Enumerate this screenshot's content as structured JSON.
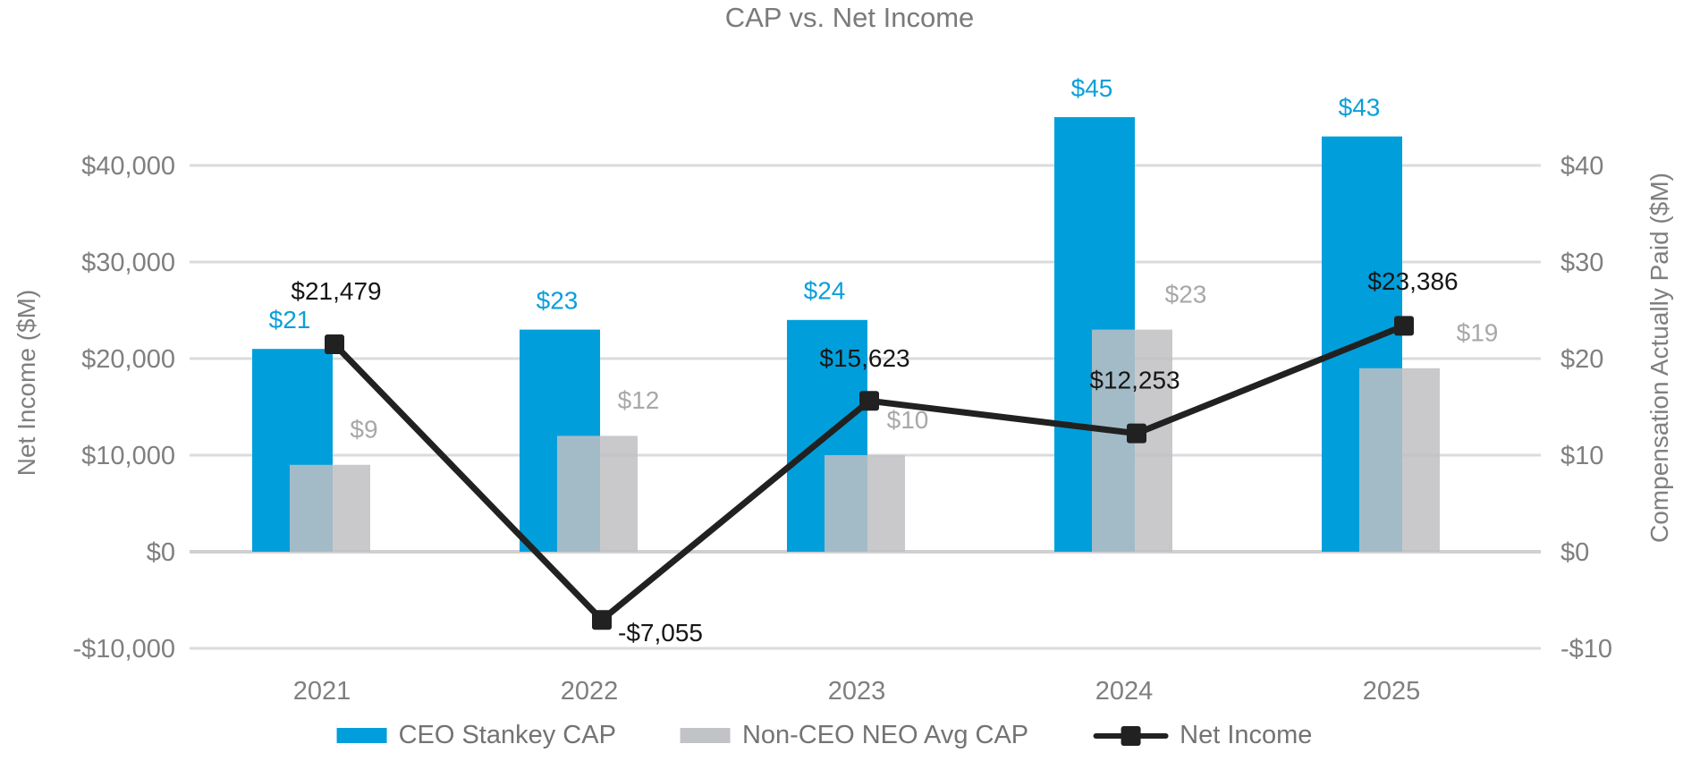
{
  "title": "CAP vs. Net Income",
  "colors": {
    "ceo_bar": "#009fdb",
    "neo_bar": "#bfc0c3",
    "net_income_line": "#212121",
    "axis_text": "#7f7f7f",
    "gridline": "#dadbdd",
    "zero_line": "#cfd0d2",
    "blue_label": "#0b9fd9",
    "gray_label": "#a7a8aa",
    "black_label": "#161616",
    "legend_text": "#737373",
    "title_text": "#7a7a7a"
  },
  "chart_data": {
    "type": "combo-bar-line",
    "title": "CAP vs. Net Income",
    "categories": [
      "2021",
      "2022",
      "2023",
      "2024",
      "2025"
    ],
    "series": [
      {
        "name": "CEO Stankey CAP",
        "type": "bar",
        "axis": "right",
        "values": [
          21,
          23,
          24,
          45,
          43
        ],
        "labels": [
          "$21",
          "$23",
          "$24",
          "$45",
          "$43"
        ]
      },
      {
        "name": "Non-CEO NEO Avg CAP",
        "type": "bar",
        "axis": "right",
        "values": [
          9,
          12,
          10,
          23,
          19
        ],
        "labels": [
          "$9",
          "$12",
          "$10",
          "$23",
          "$19"
        ]
      },
      {
        "name": "Net Income",
        "type": "line",
        "axis": "left",
        "values": [
          21479,
          -7055,
          15623,
          12253,
          23386
        ],
        "labels": [
          "$21,479",
          "-$7,055",
          "$15,623",
          "$12,253",
          "$23,386"
        ]
      }
    ],
    "left_axis": {
      "title": "Net Income ($M)",
      "tick_labels": [
        "$40,000",
        "$30,000",
        "$20,000",
        "$10,000",
        "$0",
        "-$10,000"
      ],
      "tick_values": [
        40000,
        30000,
        20000,
        10000,
        0,
        -10000
      ],
      "range": [
        -10000,
        46000
      ]
    },
    "right_axis": {
      "title": "Compensation Actually Paid ($M)",
      "tick_labels": [
        "$40",
        "$30",
        "$20",
        "$10",
        "$0",
        "-$10"
      ],
      "tick_values": [
        40,
        30,
        20,
        10,
        0,
        -10
      ],
      "range": [
        -10,
        46
      ]
    },
    "legend": [
      {
        "label": "CEO Stankey CAP",
        "swatch": "bar-blue"
      },
      {
        "label": "Non-CEO NEO Avg CAP",
        "swatch": "bar-gray"
      },
      {
        "label": "Net Income",
        "swatch": "line-marker"
      }
    ],
    "grid": "horizontal"
  }
}
